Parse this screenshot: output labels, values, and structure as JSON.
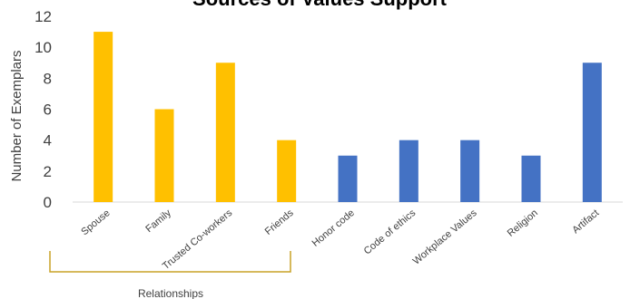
{
  "chart_data": {
    "type": "bar",
    "title": "Sources of Values Support",
    "ylabel": "Number of Exemplars",
    "xlabel": "",
    "ylim": [
      0,
      12
    ],
    "yticks": [
      0,
      2,
      4,
      6,
      8,
      10,
      12
    ],
    "categories": [
      "Spouse",
      "Family",
      "Trusted Co-workers",
      "Friends",
      "Honor code",
      "Code of ethics",
      "Workplace Values",
      "Religion",
      "Artifact"
    ],
    "values": [
      11,
      6,
      9,
      4,
      3,
      4,
      4,
      3,
      9
    ],
    "bar_colors": [
      "#FFC000",
      "#FFC000",
      "#FFC000",
      "#FFC000",
      "#4472C4",
      "#4472C4",
      "#4472C4",
      "#4472C4",
      "#4472C4"
    ],
    "grid": false,
    "group_bracket": {
      "label": "Relationships",
      "from_category": 0,
      "to_category": 3,
      "color": "#C9A227"
    }
  }
}
